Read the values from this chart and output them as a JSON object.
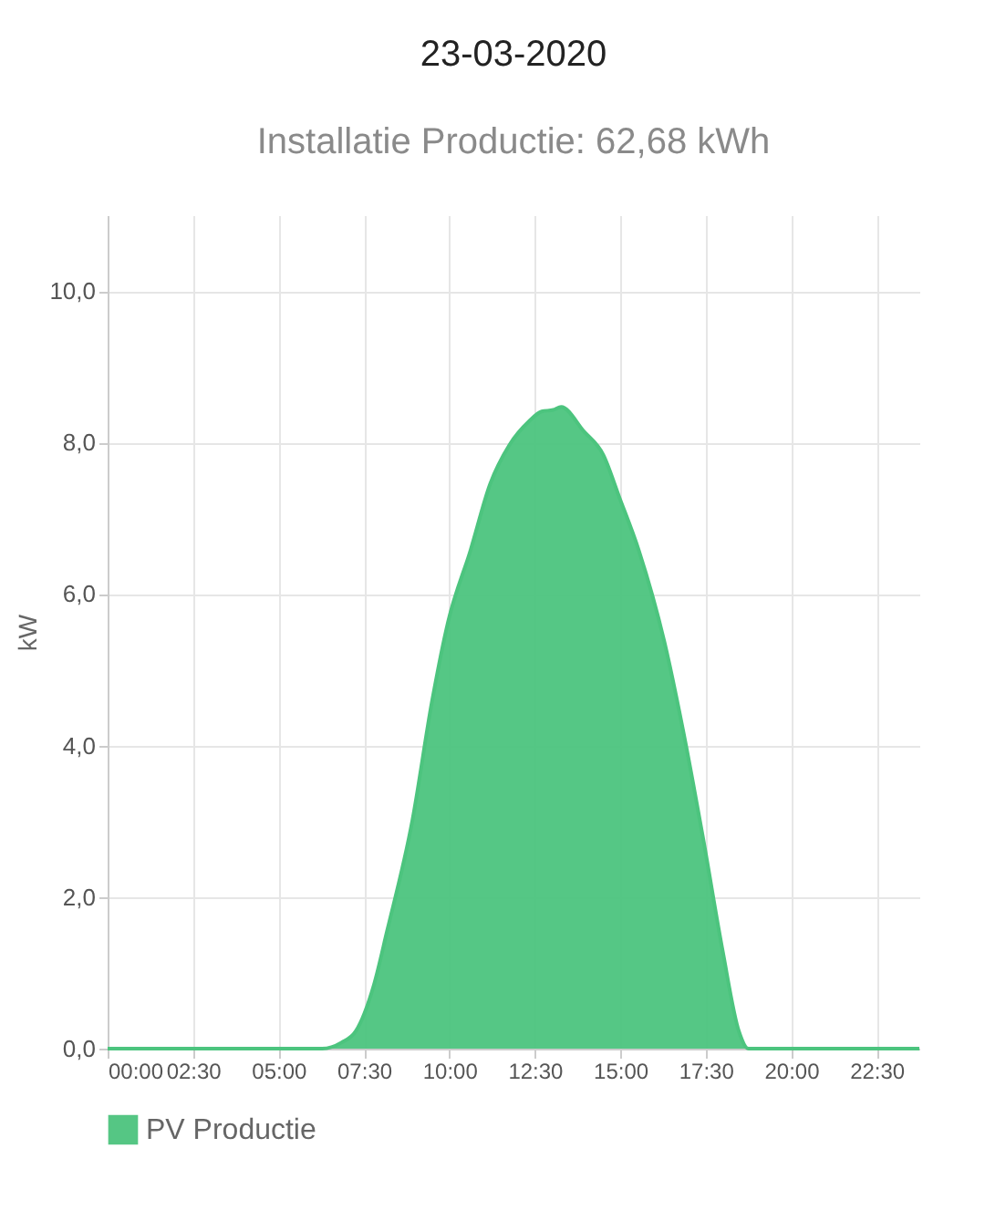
{
  "chart_data": {
    "type": "area",
    "title": "23-03-2020",
    "subtitle": "Installatie Productie: 62,68 kWh",
    "ylabel": "kW",
    "xlim": [
      0,
      23.75
    ],
    "ylim": [
      0,
      11
    ],
    "xticks": [
      {
        "value": 0,
        "label": "00:00"
      },
      {
        "value": 2.5,
        "label": "02:30"
      },
      {
        "value": 5,
        "label": "05:00"
      },
      {
        "value": 7.5,
        "label": "07:30"
      },
      {
        "value": 10,
        "label": "10:00"
      },
      {
        "value": 12.5,
        "label": "12:30"
      },
      {
        "value": 15,
        "label": "15:00"
      },
      {
        "value": 17.5,
        "label": "17:30"
      },
      {
        "value": 20,
        "label": "20:00"
      },
      {
        "value": 22.5,
        "label": "22:30"
      }
    ],
    "yticks": [
      {
        "value": 0,
        "label": "0,0"
      },
      {
        "value": 2,
        "label": "2,0"
      },
      {
        "value": 4,
        "label": "4,0"
      },
      {
        "value": 6,
        "label": "6,0"
      },
      {
        "value": 8,
        "label": "8,0"
      },
      {
        "value": 10,
        "label": "10,0"
      }
    ],
    "grid": true,
    "legend": "bottom",
    "series": [
      {
        "name": "PV Productie",
        "color": "#4cc47e",
        "x": [
          0,
          6.28,
          6.84,
          7.26,
          7.79,
          8.17,
          8.92,
          9.49,
          9.96,
          10.62,
          11.19,
          11.76,
          12.33,
          12.7,
          13.04,
          13.27,
          13.93,
          14.5,
          14.97,
          15.54,
          16.29,
          16.86,
          17.43,
          18.0,
          18.47,
          18.75,
          23.75
        ],
        "values": [
          0,
          0,
          0.08,
          0.23,
          0.84,
          1.54,
          3.02,
          4.58,
          5.63,
          6.58,
          7.45,
          7.97,
          8.28,
          8.41,
          8.43,
          8.47,
          8.15,
          7.84,
          7.28,
          6.58,
          5.37,
          4.15,
          2.76,
          1.28,
          0.23,
          0,
          0
        ]
      }
    ]
  }
}
